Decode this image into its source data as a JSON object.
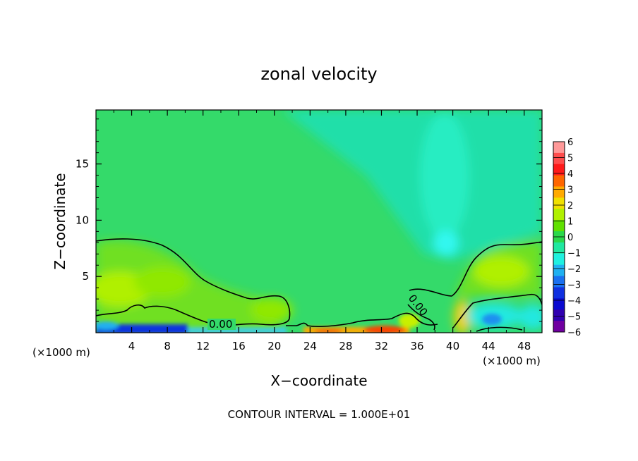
{
  "chart_data": {
    "type": "heatmap",
    "title": "zonal velocity",
    "xlabel": "X−coordinate",
    "ylabel": "Z−coordinate",
    "x_unit_left": "(×1000 m)",
    "x_unit_right": "(×1000 m)",
    "footer": "CONTOUR INTERVAL = 1.000E+01",
    "xlim": [
      0,
      50
    ],
    "ylim": [
      0,
      19.8
    ],
    "x_ticks": [
      4,
      8,
      12,
      16,
      20,
      24,
      28,
      32,
      36,
      40,
      44,
      48
    ],
    "x_tick_labels": [
      "4",
      "8",
      "12",
      "16",
      "20",
      "24",
      "28",
      "32",
      "36",
      "40",
      "44",
      "48"
    ],
    "y_ticks": [
      5,
      10,
      15
    ],
    "y_tick_labels": [
      "5",
      "10",
      "15"
    ],
    "colorbar": {
      "min": -6,
      "max": 6,
      "tick_values": [
        6,
        5,
        4,
        3,
        2,
        1,
        0,
        -1,
        -2,
        -3,
        -4,
        -5,
        -6
      ],
      "tick_labels": [
        "6",
        "5",
        "4",
        "3",
        "2",
        "1",
        "0",
        "−1",
        "−2",
        "−3",
        "−4",
        "−5",
        "−6"
      ],
      "colors": [
        "#ff9999",
        "#ff4d4d",
        "#ff1a1a",
        "#ff6600",
        "#ffaa00",
        "#f0e000",
        "#b0f000",
        "#60e000",
        "#2ad84a",
        "#20e8a0",
        "#20f0e0",
        "#20b0f0",
        "#1a70f0",
        "#1030e0",
        "#0a0ad0",
        "#3000b0",
        "#7000a0"
      ]
    },
    "contour_labels": [
      {
        "text": "0.00",
        "x": 14.5,
        "z": 0.9
      },
      {
        "text": "0.00",
        "x": 36,
        "z": 2.5
      }
    ],
    "field_features": [
      {
        "desc": "positive",
        "x": 3,
        "z": 4,
        "value": 1.2
      },
      {
        "desc": "positive",
        "x": 18,
        "z": 2.2,
        "value": 1
      },
      {
        "desc": "positive",
        "x": 44,
        "z": 5.5,
        "value": 1.5
      },
      {
        "desc": "negative",
        "x": 38.5,
        "z": 8.2,
        "value": -2.5
      },
      {
        "desc": "negative",
        "x": 39,
        "z": 15,
        "value": -1.5
      },
      {
        "desc": "negative",
        "x": 43.5,
        "z": 1.3,
        "value": -3
      },
      {
        "desc": "negative",
        "x": 3,
        "z": 0.3,
        "value": -4
      },
      {
        "desc": "positive",
        "x": 32,
        "z": 0.3,
        "value": 4
      },
      {
        "desc": "positive",
        "x": 40,
        "z": 1.6,
        "value": 2.5
      }
    ]
  }
}
